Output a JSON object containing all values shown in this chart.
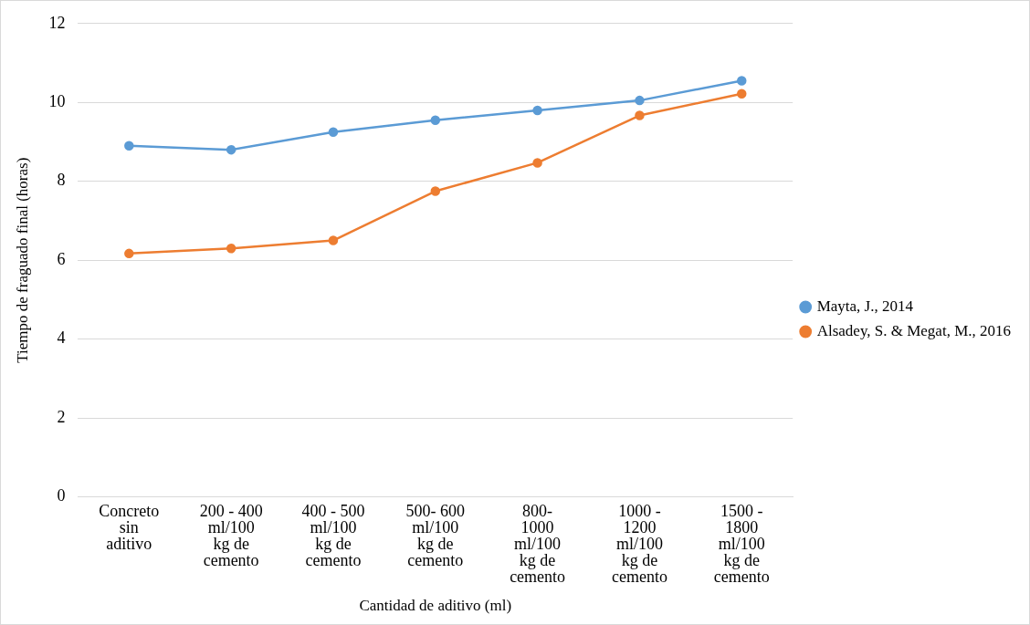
{
  "chart_data": {
    "type": "line",
    "xlabel": "Cantidad de aditivo (ml)",
    "ylabel": "Tiempo de fraguado final (horas)",
    "categories": [
      "Concreto\nsin\naditivo",
      "200 - 400\nml/100\nkg de\ncemento",
      "400 - 500\nml/100\nkg de\ncemento",
      "500- 600\nml/100\nkg de\ncemento",
      "800-\n1000\nml/100\nkg de\ncemento",
      "1000 -\n1200\nml/100\nkg de\ncemento",
      "1500 -\n1800\nml/100\nkg de\ncemento"
    ],
    "series": [
      {
        "name": "Mayta, J., 2014",
        "color": "#5b9bd5",
        "values": [
          8.9,
          8.8,
          9.25,
          9.55,
          9.8,
          10.05,
          10.55
        ]
      },
      {
        "name": "Alsadey, S. & Megat, M., 2016",
        "color": "#ed7d31",
        "values": [
          6.17,
          6.3,
          6.5,
          7.75,
          8.47,
          9.67,
          10.22
        ]
      }
    ],
    "ylim": [
      0,
      12
    ],
    "yticks": [
      0,
      2,
      4,
      6,
      8,
      10,
      12
    ],
    "grid": "y",
    "legend": "right",
    "marker": "circle",
    "line_style": "solid"
  }
}
